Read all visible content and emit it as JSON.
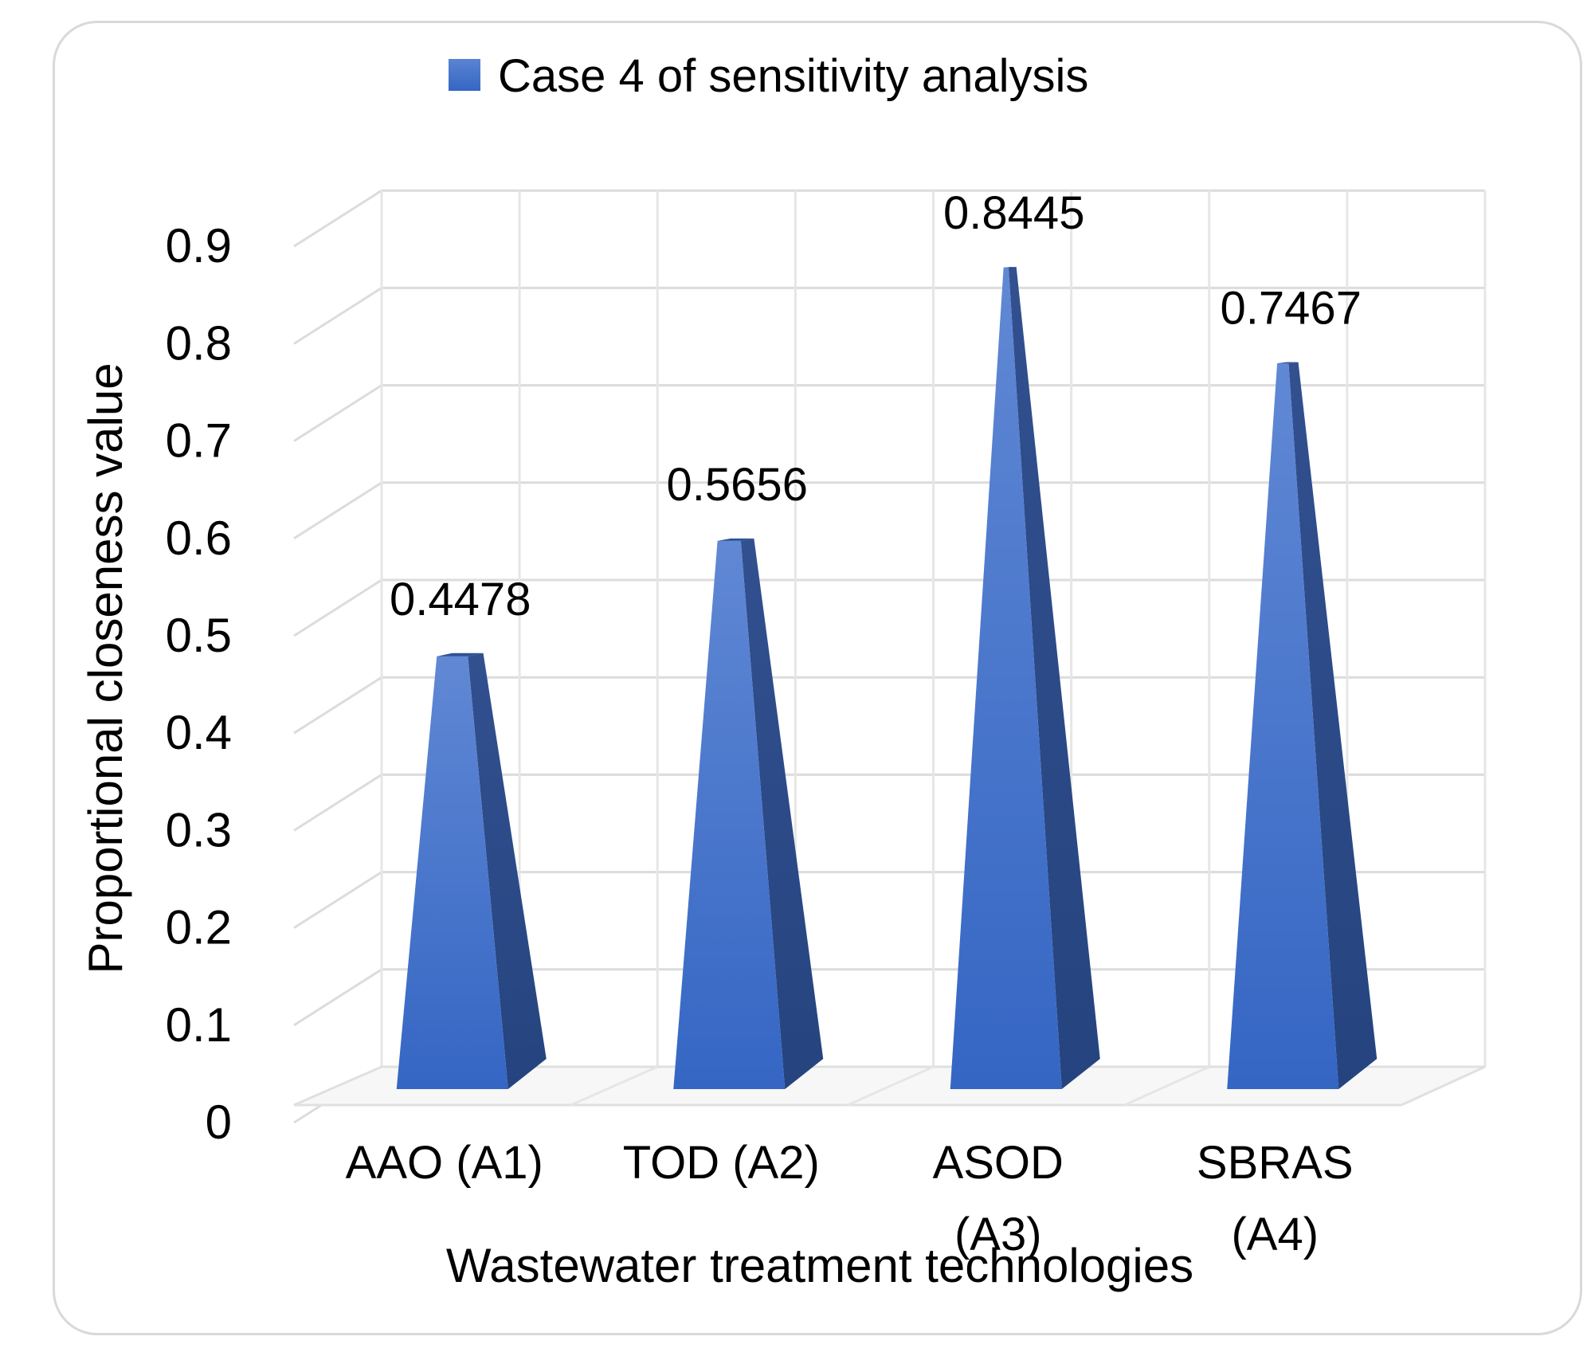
{
  "chart_data": {
    "type": "bar",
    "style": "3d-pyramid",
    "title": "",
    "legend": [
      "Case 4 of sensitivity analysis"
    ],
    "legend_position": "top",
    "categories": [
      [
        "AAO (A1)"
      ],
      [
        "TOD (A2)"
      ],
      [
        "ASOD",
        "(A3)"
      ],
      [
        "SBRAS",
        "(A4)"
      ]
    ],
    "series": [
      {
        "name": "Case 4 of sensitivity analysis",
        "values": [
          0.4478,
          0.5656,
          0.8445,
          0.7467
        ],
        "labels": [
          "0.4478",
          "0.5656",
          "0.8445",
          "0.7467"
        ],
        "color": "#4472c4"
      }
    ],
    "xlabel": "Wastewater treatment technologies",
    "ylabel": "Proportional closeness value",
    "ylim": [
      0,
      0.9
    ],
    "yticks": [
      "0",
      "0.1",
      "0.2",
      "0.3",
      "0.4",
      "0.5",
      "0.6",
      "0.7",
      "0.8",
      "0.9"
    ],
    "grid": true
  }
}
